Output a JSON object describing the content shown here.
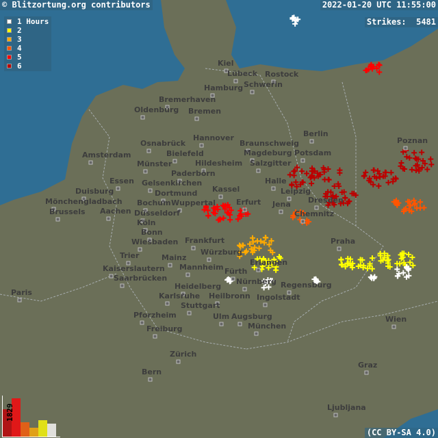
{
  "header": {
    "copyright": "© Blitzortung.org contributors",
    "timestamp": "2022-01-20 UTC 11:55:00",
    "strikes_label": "Strikes:",
    "strikes_value": "5481"
  },
  "legend": {
    "unit": "Hours",
    "items": [
      {
        "label": "1",
        "color": "#ffffff"
      },
      {
        "label": "2",
        "color": "#ffff00"
      },
      {
        "label": "3",
        "color": "#ffaa00"
      },
      {
        "label": "4",
        "color": "#ff5500"
      },
      {
        "label": "5",
        "color": "#ff0000"
      },
      {
        "label": "6",
        "color": "#bb0000"
      }
    ]
  },
  "histogram": {
    "max_label": "1829",
    "bars": [
      {
        "color": "#b01515",
        "value": 1300
      },
      {
        "color": "#e01818",
        "value": 1829
      },
      {
        "color": "#e06018",
        "value": 690
      },
      {
        "color": "#e0a018",
        "value": 420
      },
      {
        "color": "#e0e018",
        "value": 780
      },
      {
        "color": "#e0e0dc",
        "value": 620
      }
    ]
  },
  "license": "(CC BY-SA 4.0)",
  "cities": [
    "Kiel",
    "Lübeck",
    "Rostock",
    "Hamburg",
    "Schwerin",
    "Bremerhaven",
    "Oldenburg",
    "Bremen",
    "Berlin",
    "Poznan",
    "Osnabrück",
    "Hannover",
    "Braunschweig",
    "Magdeburg",
    "Potsdam",
    "Amsterdam",
    "Münster",
    "Bielefeld",
    "Hildesheim",
    "Salzgitter",
    "Paderborn",
    "Gelsenkirchen",
    "Essen",
    "Dortmund",
    "Duisburg",
    "Bochum",
    "Wuppertal",
    "Mönchengladbach",
    "Kassel",
    "Halle",
    "Leipzig",
    "Erfurt",
    "Jena",
    "Dresden",
    "Chemnitz",
    "Brussels",
    "Aachen",
    "Düsseldorf",
    "Köln",
    "Bonn",
    "Wiesbaden",
    "Frankfurt",
    "Mainz",
    "Mannheim",
    "Würzburg",
    "Praha",
    "Trier",
    "Kaiserslautern",
    "Saarbrücken",
    "Erlangen",
    "Fürth",
    "Nürnberg",
    "Regensburg",
    "Karlsruhe",
    "Heidelberg",
    "Heilbronn",
    "Stuttgart",
    "Ingolstadt",
    "Paris",
    "Pforzheim",
    "Ulm",
    "Augsburg",
    "München",
    "Wien",
    "Freiburg",
    "Zürich",
    "Bern",
    "Graz",
    "Ljubljana"
  ],
  "colors": {
    "land": "#6b6f58",
    "sea": "#2f6e94",
    "city_text": "#3d3d3d"
  }
}
